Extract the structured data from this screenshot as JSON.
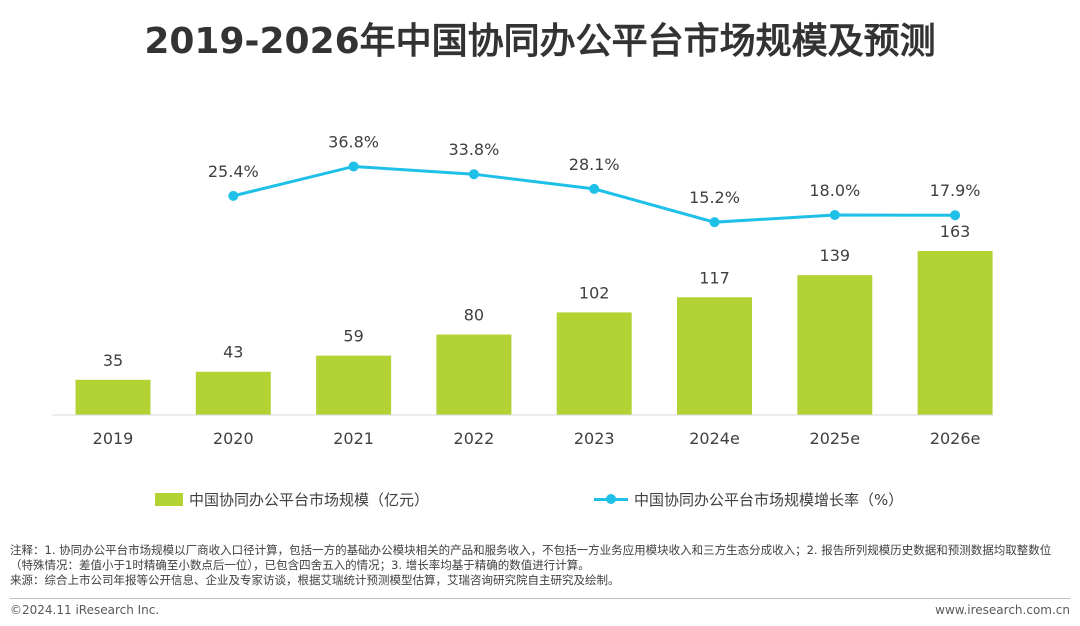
{
  "title": "2019-2026年中国协同办公平台市场规模及预测",
  "chart_data": {
    "type": "bar",
    "categories": [
      "2019",
      "2020",
      "2021",
      "2022",
      "2023",
      "2024e",
      "2025e",
      "2026e"
    ],
    "series": [
      {
        "name": "中国协同办公平台市场规模（亿元）",
        "type": "bar",
        "values": [
          35,
          43,
          59,
          80,
          102,
          117,
          139,
          163
        ],
        "labels": [
          "35",
          "43",
          "59",
          "80",
          "102",
          "117",
          "139",
          "163"
        ],
        "color": "#b3d234"
      },
      {
        "name": "中国协同办公平台市场规模增长率（%）",
        "type": "line",
        "x": [
          "2020",
          "2021",
          "2022",
          "2023",
          "2024e",
          "2025e",
          "2026e"
        ],
        "values": [
          25.4,
          36.8,
          33.8,
          28.1,
          15.2,
          18.0,
          17.9
        ],
        "labels": [
          "25.4%",
          "36.8%",
          "33.8%",
          "28.1%",
          "15.2%",
          "18.0%",
          "17.9%"
        ],
        "color": "#1fc0e8"
      }
    ],
    "legend_position": "bottom",
    "grid": false
  },
  "notes": {
    "line1": "注释：1. 协同办公平台市场规模以厂商收入口径计算，包括一方的基础办公模块相关的产品和服务收入，不包括一方业务应用模块收入和三方生态分成收入；2. 报告所列规模历史数据和预测数据均取整数位（特殊情况：差值小于1时精确至小数点后一位），已包含四舍五入的情况；3. 增长率均基于精确的数值进行计算。",
    "line2": "来源：综合上市公司年报等公开信息、企业及专家访谈，根据艾瑞统计预测模型估算，艾瑞咨询研究院自主研究及绘制。"
  },
  "footer": {
    "copyright": "©2024.11 iResearch Inc.",
    "website": "www.iresearch.com.cn"
  }
}
